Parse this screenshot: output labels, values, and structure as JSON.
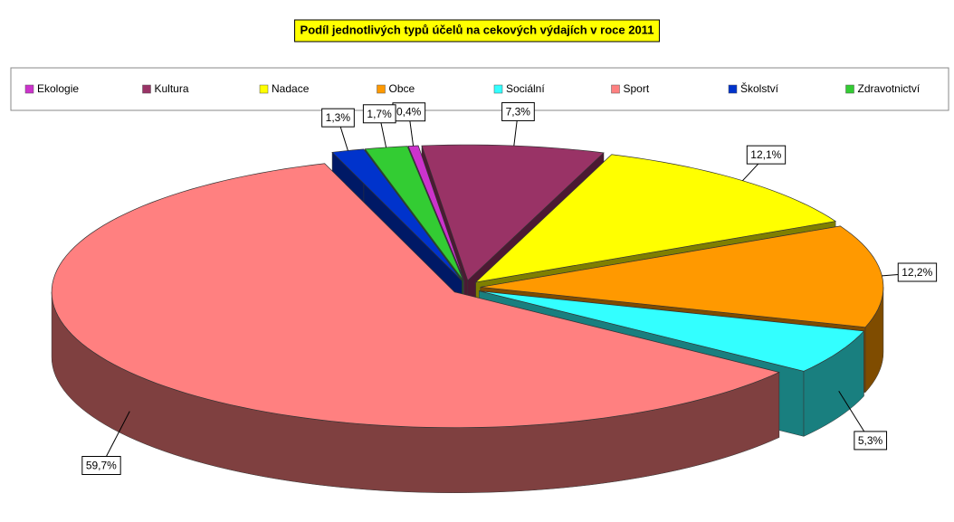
{
  "chart_data": {
    "type": "pie3d",
    "title": "Podíl jednotlivých typů účelů na cekových výdajích v roce 2011",
    "categories": [
      "Ekologie",
      "Kultura",
      "Nadace",
      "Obce",
      "Sociální",
      "Sport",
      "Školství",
      "Zdravotnictví"
    ],
    "values": [
      0.4,
      7.3,
      12.1,
      12.2,
      5.3,
      59.7,
      1.3,
      1.7
    ],
    "value_labels": [
      "0,4%",
      "7,3%",
      "12,1%",
      "12,2%",
      "5,3%",
      "59,7%",
      "1,3%",
      "1,7%"
    ],
    "colors": [
      "#cc33cc",
      "#993366",
      "#ffff00",
      "#ff9900",
      "#33ffff",
      "#ff8080",
      "#0033cc",
      "#33cc33"
    ],
    "legend": "top"
  }
}
